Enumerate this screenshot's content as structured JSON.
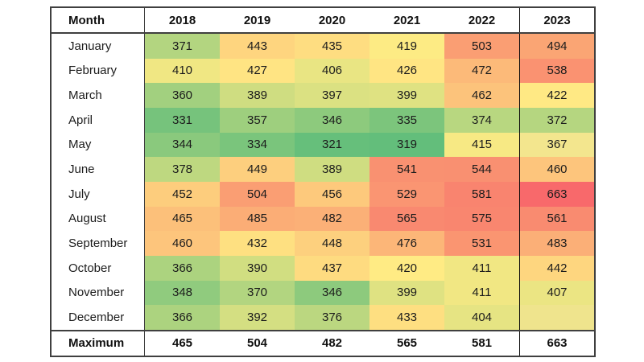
{
  "chart_data": {
    "type": "heatmap",
    "title": "",
    "corner_label": "Month",
    "columns": [
      "2018",
      "2019",
      "2020",
      "2021",
      "2022",
      "2023"
    ],
    "rows": [
      "January",
      "February",
      "March",
      "April",
      "May",
      "June",
      "July",
      "August",
      "September",
      "October",
      "November",
      "December"
    ],
    "values": [
      [
        371,
        443,
        435,
        419,
        503,
        494
      ],
      [
        410,
        427,
        406,
        426,
        472,
        538
      ],
      [
        360,
        389,
        397,
        399,
        462,
        422
      ],
      [
        331,
        357,
        346,
        335,
        374,
        372
      ],
      [
        344,
        334,
        321,
        319,
        415,
        367
      ],
      [
        378,
        449,
        389,
        541,
        544,
        460
      ],
      [
        452,
        504,
        456,
        529,
        581,
        663
      ],
      [
        465,
        485,
        482,
        565,
        575,
        561
      ],
      [
        460,
        432,
        448,
        476,
        531,
        483
      ],
      [
        366,
        390,
        437,
        420,
        411,
        442
      ],
      [
        348,
        370,
        346,
        399,
        411,
        407
      ],
      [
        366,
        392,
        376,
        433,
        404,
        null
      ]
    ],
    "footer_label": "Maximum",
    "footer_values": [
      465,
      504,
      482,
      565,
      581,
      663
    ],
    "value_range": [
      319,
      663
    ],
    "color_scale": [
      {
        "value": 319,
        "color": "#63BE7B"
      },
      {
        "value": 420,
        "color": "#FFEB84"
      },
      {
        "value": 500,
        "color": "#FA9F73"
      },
      {
        "value": 663,
        "color": "#F8696B"
      }
    ],
    "cell_color_overrides": [
      {
        "row_index": 4,
        "col_index": 5,
        "color": "#F3E68E"
      },
      {
        "row_index": 11,
        "col_index": 5,
        "color": "#EFE48D"
      }
    ],
    "style": {
      "outer_border_color": "#3f3f3f",
      "last_column_separator_color": "#0a0a0a",
      "header_background": "#ffffff",
      "text_color": "#1c1c1c"
    }
  }
}
